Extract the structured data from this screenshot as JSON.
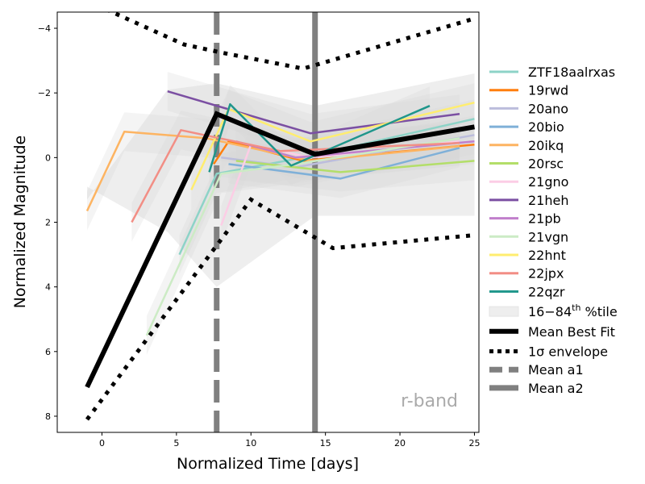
{
  "chart_data": {
    "type": "line",
    "xlabel": "Normalized Time [days]",
    "ylabel": "Normalized Magnitude",
    "xlim": [
      -3,
      25.3
    ],
    "ylim": [
      8.5,
      -4.5
    ],
    "y_inverted": true,
    "xticks": [
      0,
      5,
      10,
      15,
      20,
      25
    ],
    "yticks": [
      -4,
      -2,
      0,
      2,
      4,
      6,
      8
    ],
    "xtick_labels": [
      "0",
      "5",
      "10",
      "15",
      "20",
      "25"
    ],
    "ytick_labels": [
      "−4",
      "−2",
      "0",
      "2",
      "4",
      "6",
      "8"
    ],
    "grid": false,
    "legend_position": "outside-right",
    "annotation": {
      "text": "r-band",
      "x": 22,
      "y": 7.5,
      "color": "#aaaaaa"
    },
    "series": [
      {
        "name": "ZTF18aalrxas",
        "color": "#8dd3c7",
        "x": [
          5.2,
          7.7,
          13.5,
          25
        ],
        "y": [
          3,
          0.5,
          0,
          -1.2
        ]
      },
      {
        "name": "19rwd",
        "color": "#ff7f0e",
        "x": [
          7.5,
          8.5,
          13.5,
          25
        ],
        "y": [
          0.2,
          -0.5,
          0.1,
          -0.4
        ]
      },
      {
        "name": "20ano",
        "color": "#bcbddc",
        "x": [
          8,
          13,
          25
        ],
        "y": [
          0,
          0.3,
          -0.7
        ]
      },
      {
        "name": "20bio",
        "color": "#7fb0d8",
        "x": [
          8.5,
          16,
          24
        ],
        "y": [
          0.2,
          0.65,
          -0.3
        ]
      },
      {
        "name": "20ikq",
        "color": "#fdb462",
        "x": [
          -1,
          1.5,
          7,
          14,
          24
        ],
        "y": [
          1.65,
          -0.8,
          -0.6,
          0.1,
          -0.35
        ]
      },
      {
        "name": "20rsc",
        "color": "#b3de69",
        "x": [
          9,
          16,
          25
        ],
        "y": [
          0.1,
          0.45,
          0.1
        ]
      },
      {
        "name": "21gno",
        "color": "#fccde5",
        "x": [
          8,
          10,
          14,
          24
        ],
        "y": [
          2.1,
          -0.4,
          0,
          -0.5
        ]
      },
      {
        "name": "21heh",
        "color": "#7b4fa2",
        "x": [
          4.4,
          14,
          24
        ],
        "y": [
          -2.05,
          -0.75,
          -1.35
        ]
      },
      {
        "name": "21pb",
        "color": "#c17fcb",
        "x": [
          9,
          13,
          25
        ],
        "y": [
          -0.5,
          0,
          -0.5
        ]
      },
      {
        "name": "21vgn",
        "color": "#ccebc5",
        "x": [
          3,
          8,
          13,
          24
        ],
        "y": [
          5.5,
          0.5,
          0.2,
          -0.6
        ]
      },
      {
        "name": "22hnt",
        "color": "#ffed6f",
        "x": [
          6,
          8.5,
          14,
          25
        ],
        "y": [
          1,
          -1.5,
          -0.5,
          -1.7
        ]
      },
      {
        "name": "22jpx",
        "color": "#f28e85",
        "x": [
          2,
          5.3,
          12,
          24
        ],
        "y": [
          2,
          -0.85,
          -0.2,
          -0.45
        ]
      },
      {
        "name": "22qzr",
        "color": "#1f968b",
        "x": [
          7.2,
          8.6,
          12.7,
          22
        ],
        "y": [
          0.45,
          -1.65,
          0.25,
          -1.6
        ]
      }
    ],
    "envelope_band": {
      "name": "16−84th %tile",
      "color": "#e0e0e0",
      "x": [
        -1,
        4.4,
        7.7,
        14.3,
        25
      ],
      "y_low": [
        1.3,
        -2.1,
        -2.3,
        -1.6,
        -2.6
      ],
      "y_high": [
        0.9,
        2.3,
        4,
        1.8,
        1.8
      ]
    },
    "mean_best_fit": {
      "name": "Mean Best Fit",
      "color": "#000000",
      "x": [
        -1,
        7.7,
        14.3,
        25
      ],
      "y": [
        7.1,
        -1.35,
        -0.1,
        -0.95
      ]
    },
    "sigma_envelope": {
      "name": "1σ envelope",
      "color": "#000000",
      "upper": {
        "x": [
          -1,
          5.5,
          8,
          13.5,
          25
        ],
        "y": [
          -4.85,
          -3.5,
          -3.25,
          -2.75,
          -4.3
        ]
      },
      "lower": {
        "x": [
          -1,
          10,
          15.5,
          25
        ],
        "y": [
          8.1,
          1.3,
          2.8,
          2.4
        ]
      }
    },
    "vlines": [
      {
        "name": "Mean a1",
        "x": 7.7,
        "color": "#808080",
        "style": "dashed"
      },
      {
        "name": "Mean a2",
        "x": 14.3,
        "color": "#808080",
        "style": "solid"
      }
    ],
    "legend_labels": {
      "band_base": "16−84",
      "band_sup": "th",
      "band_suffix": " %tile",
      "sigma_symbol": "1σ",
      "sigma_rest": " envelope"
    }
  }
}
